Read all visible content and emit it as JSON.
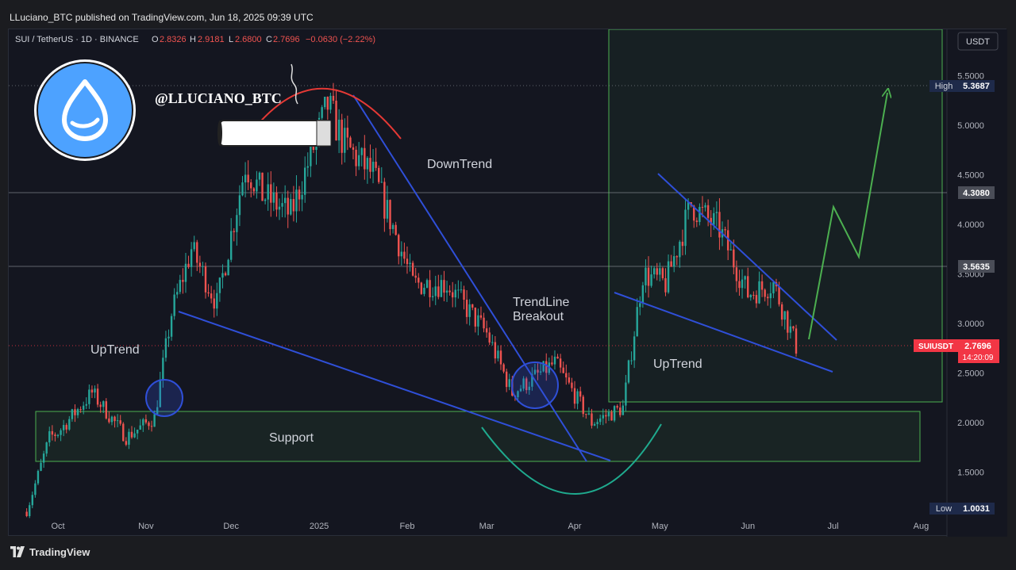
{
  "publisher_line": "LLuciano_BTC published on TradingView.com, Jun 18, 2025 09:39 UTC",
  "footer": {
    "brand": "TradingView",
    "logo_icon": "tradingview-logo-icon"
  },
  "symbol_header": {
    "symbol": "SUI / TetherUS · 1D · BINANCE",
    "o_label": "O",
    "o_value": "2.8326",
    "h_label": "H",
    "h_value": "2.9181",
    "l_label": "L",
    "l_value": "2.6800",
    "c_label": "C",
    "c_value": "2.7696",
    "change": "−0.0630 (−2.22%)"
  },
  "currency_button": "USDT",
  "watermark": "@LLUCIANO_BTC",
  "logo_icon": "sui-drop-logo-icon",
  "colors": {
    "up": "#26a69a",
    "down": "#ef5350",
    "trendline": "#2f4fd8",
    "arrow": "#4caf50",
    "zone_border": "#4caf50",
    "arc": "#1faa8e",
    "dome": "#e53935",
    "price_tag": "#f23645"
  },
  "annotations": {
    "downtrend": "DownTrend",
    "uptrend_left": "UpTrend",
    "uptrend_right": "UpTrend",
    "breakout_line1": "TrendLine",
    "breakout_line2": "Breakout",
    "support": "Support"
  },
  "price_tags": {
    "high_label": "High",
    "high_value": "5.3687",
    "low_label": "Low",
    "low_value": "1.0031",
    "level_upper": "4.3080",
    "level_lower": "3.5635",
    "current_symbol": "SUIUSDT",
    "current_value": "2.7696",
    "countdown": "14:20:09"
  },
  "chart_data": {
    "type": "candlestick",
    "title": "SUI / TetherUS · 1D · BINANCE",
    "xlabel": "",
    "ylabel": "",
    "x_ticks": [
      "Oct",
      "Nov",
      "Dec",
      "2025",
      "Feb",
      "Mar",
      "Apr",
      "May",
      "Jun",
      "Jul",
      "Aug"
    ],
    "y_ticks": [
      "1.5000",
      "2.0000",
      "2.5000",
      "3.0000",
      "3.5000",
      "4.0000",
      "4.5000",
      "5.0000",
      "5.5000"
    ],
    "ylim": [
      1.0,
      5.6
    ],
    "grid": false,
    "price_series_approx": [
      {
        "date": "2024-09-20",
        "price": 1.1
      },
      {
        "date": "2024-09-28",
        "price": 1.85
      },
      {
        "date": "2024-10-01",
        "price": 1.9
      },
      {
        "date": "2024-10-13",
        "price": 2.3
      },
      {
        "date": "2024-10-25",
        "price": 1.85
      },
      {
        "date": "2024-11-04",
        "price": 2.05
      },
      {
        "date": "2024-11-10",
        "price": 3.1
      },
      {
        "date": "2024-11-17",
        "price": 3.75
      },
      {
        "date": "2024-11-26",
        "price": 3.2
      },
      {
        "date": "2024-12-06",
        "price": 4.6
      },
      {
        "date": "2024-12-12",
        "price": 4.3
      },
      {
        "date": "2024-12-22",
        "price": 4.1
      },
      {
        "date": "2025-01-04",
        "price": 5.2
      },
      {
        "date": "2025-01-10",
        "price": 4.8
      },
      {
        "date": "2025-01-20",
        "price": 4.5
      },
      {
        "date": "2025-01-28",
        "price": 3.9
      },
      {
        "date": "2025-02-03",
        "price": 3.4
      },
      {
        "date": "2025-02-15",
        "price": 3.4
      },
      {
        "date": "2025-03-01",
        "price": 2.9
      },
      {
        "date": "2025-03-10",
        "price": 2.3
      },
      {
        "date": "2025-03-25",
        "price": 2.6
      },
      {
        "date": "2025-04-07",
        "price": 2.0
      },
      {
        "date": "2025-04-18",
        "price": 2.15
      },
      {
        "date": "2025-04-25",
        "price": 3.5
      },
      {
        "date": "2025-05-03",
        "price": 3.4
      },
      {
        "date": "2025-05-12",
        "price": 4.2
      },
      {
        "date": "2025-05-22",
        "price": 3.95
      },
      {
        "date": "2025-06-01",
        "price": 3.3
      },
      {
        "date": "2025-06-10",
        "price": 3.4
      },
      {
        "date": "2025-06-18",
        "price": 2.77
      }
    ],
    "key_levels": [
      4.308,
      3.5635,
      2.7696
    ],
    "high": 5.3687,
    "low": 1.0031
  }
}
